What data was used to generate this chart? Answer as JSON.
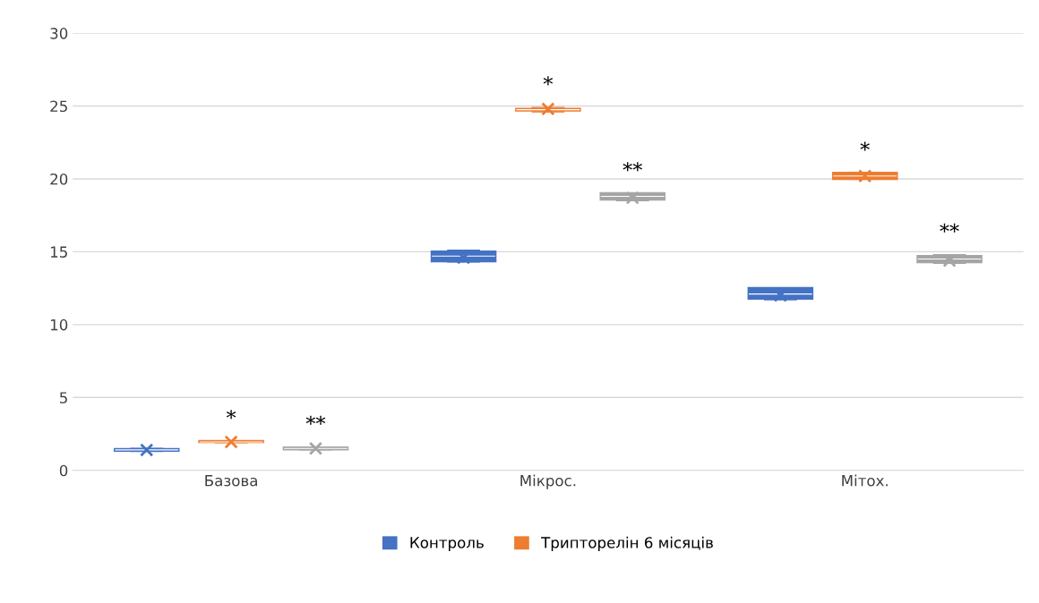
{
  "chart_data": {
    "type": "box",
    "categories": [
      "Базова",
      "Мікрос.",
      "Мітох."
    ],
    "series": [
      {
        "name": "Контроль",
        "color": "#4472c4",
        "boxes": [
          {
            "low": 1.3,
            "q1": 1.35,
            "median": 1.4,
            "q3": 1.45,
            "high": 1.5,
            "mean": 1.4
          },
          {
            "low": 14.3,
            "q1": 14.35,
            "median": 14.7,
            "q3": 15.0,
            "high": 15.1,
            "mean": 14.6
          },
          {
            "low": 11.7,
            "q1": 11.8,
            "median": 12.1,
            "q3": 12.5,
            "high": 12.5,
            "mean": 12.0
          }
        ]
      },
      {
        "name": "Трипторелін 6 місяців",
        "color": "#ed7d31",
        "value_labels": [
          "*",
          "*",
          "*"
        ],
        "boxes": [
          {
            "low": 1.9,
            "q1": 1.95,
            "median": 1.95,
            "q3": 2.0,
            "high": 2.0,
            "mean": 1.95
          },
          {
            "low": 24.6,
            "q1": 24.7,
            "median": 24.75,
            "q3": 24.8,
            "high": 24.9,
            "mean": 24.8
          },
          {
            "low": 20.0,
            "q1": 20.0,
            "median": 20.2,
            "q3": 20.4,
            "high": 20.4,
            "mean": 20.2
          }
        ]
      },
      {
        "color": "#a5a5a5",
        "value_labels": [
          "**",
          "**",
          "**"
        ],
        "boxes": [
          {
            "low": 1.4,
            "q1": 1.45,
            "median": 1.5,
            "q3": 1.55,
            "high": 1.6,
            "mean": 1.5
          },
          {
            "low": 18.5,
            "q1": 18.6,
            "median": 18.8,
            "q3": 19.0,
            "high": 19.0,
            "mean": 18.7
          },
          {
            "low": 14.2,
            "q1": 14.3,
            "median": 14.5,
            "q3": 14.7,
            "high": 14.8,
            "mean": 14.4
          }
        ]
      }
    ],
    "ylim": [
      0,
      30
    ],
    "yticks": [
      0,
      5,
      10,
      15,
      20,
      25,
      30
    ],
    "grid": "y",
    "legend": "bottom"
  }
}
